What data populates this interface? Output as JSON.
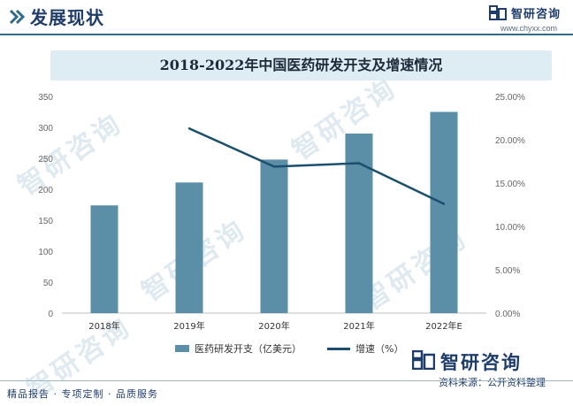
{
  "header": {
    "title": "发展现状",
    "brand_name": "智研咨询",
    "brand_url": "www.chyxx.com"
  },
  "watermark_text": "智研咨询",
  "colors": {
    "bar": "#5b8fa8",
    "line": "#1a4f6e",
    "axis": "#666666",
    "accent": "#1f3d6b"
  },
  "chart_data": {
    "type": "bar",
    "title": "2018-2022年中国医药研发开支及增速情况",
    "categories": [
      "2018年",
      "2019年",
      "2020年",
      "2021年",
      "2022年E"
    ],
    "series": [
      {
        "name": "医药研发开支（亿美元）",
        "type": "bar",
        "axis": "left",
        "values": [
          174,
          211,
          248,
          290,
          325
        ]
      },
      {
        "name": "增速（%）",
        "type": "line",
        "axis": "right",
        "values": [
          null,
          21.3,
          16.9,
          17.3,
          12.6
        ]
      }
    ],
    "y_left": {
      "min": 0,
      "max": 350,
      "ticks": [
        "0",
        "50",
        "100",
        "150",
        "200",
        "250",
        "300",
        "350"
      ]
    },
    "y_right": {
      "min": 0,
      "max": 25,
      "ticks": [
        "0.00%",
        "5.00%",
        "10.00%",
        "15.00%",
        "20.00%",
        "25.00%"
      ]
    },
    "legend": "bottom"
  },
  "footer": {
    "left": "精品报告 · 专项定制 · 品质服务",
    "brand": "智研咨询",
    "source": "资料来源：公开资料整理"
  }
}
